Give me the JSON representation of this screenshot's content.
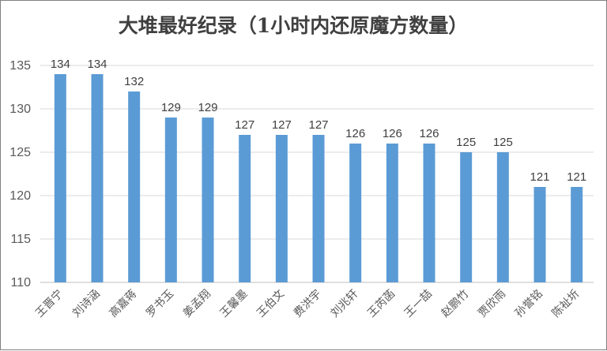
{
  "chart_data": {
    "type": "bar",
    "title": "大堆最好纪录（1小时内还原魔方数量）",
    "xlabel": "",
    "ylabel": "",
    "ylim": [
      110,
      135
    ],
    "yticks": [
      110,
      115,
      120,
      125,
      130,
      135
    ],
    "grid": true,
    "legend": "none",
    "bar_color": "#5B9BD5",
    "categories": [
      "王晋宁",
      "刘诗涵",
      "高嘉蒋",
      "罗书玉",
      "姜孟翔",
      "王馨墨",
      "王伯文",
      "费洪宇",
      "刘兆轩",
      "王芮菡",
      "王一喆",
      "赵鹏竹",
      "贾欣雨",
      "孙誉铭",
      "陈祉圻"
    ],
    "values": [
      134,
      134,
      132,
      129,
      129,
      127,
      127,
      127,
      126,
      126,
      126,
      125,
      125,
      121,
      121
    ]
  }
}
